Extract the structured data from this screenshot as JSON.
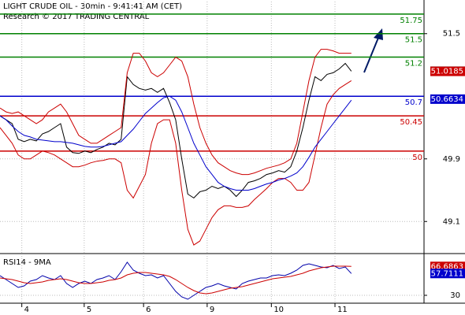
{
  "chart_data": [
    {
      "type": "line",
      "title": "LIGHT CRUDE OIL - 30min - 9:41:41 AM (CET)",
      "subtitle": "Research © 2017 TRADING CENTRAL",
      "xlim": [
        0,
        70
      ],
      "xticks": [
        {
          "value": 3.6,
          "label": "4"
        },
        {
          "value": 13.9,
          "label": "5"
        },
        {
          "value": 23.7,
          "label": "6"
        },
        {
          "value": 34.2,
          "label": "9"
        },
        {
          "value": 44.8,
          "label": "10"
        },
        {
          "value": 55.3,
          "label": "11"
        }
      ],
      "ylim": [
        48.69,
        51.91
      ],
      "yticks": [
        49.1,
        49.9,
        51.5
      ],
      "grid": true,
      "series": [
        {
          "color": "#000000",
          "values": [
            50.45,
            50.4,
            50.35,
            50.15,
            50.12,
            50.15,
            50.13,
            50.22,
            50.25,
            50.3,
            50.35,
            50.05,
            49.98,
            49.97,
            50.0,
            49.98,
            50.02,
            50.05,
            50.1,
            50.08,
            50.15,
            50.95,
            50.85,
            50.8,
            50.78,
            50.8,
            50.75,
            50.8,
            50.62,
            50.4,
            49.9,
            49.45,
            49.4,
            49.48,
            49.5,
            49.55,
            49.52,
            49.55,
            49.5,
            49.42,
            49.5,
            49.6,
            49.62,
            49.65,
            49.7,
            49.72,
            49.75,
            49.73,
            49.8,
            50.0,
            50.3,
            50.65,
            50.95,
            50.9,
            50.98,
            51.0,
            51.05,
            51.12,
            51.02
          ]
        },
        {
          "color": "#cc0000",
          "values": [
            50.55,
            50.5,
            50.48,
            50.5,
            50.45,
            50.4,
            50.35,
            50.4,
            50.5,
            50.55,
            50.6,
            50.5,
            50.35,
            50.2,
            50.15,
            50.1,
            50.1,
            50.15,
            50.2,
            50.25,
            50.3,
            51.0,
            51.25,
            51.25,
            51.15,
            51.0,
            50.95,
            51.0,
            51.1,
            51.2,
            51.15,
            50.95,
            50.6,
            50.3,
            50.1,
            49.95,
            49.85,
            49.8,
            49.75,
            49.72,
            49.7,
            49.7,
            49.72,
            49.75,
            49.78,
            49.8,
            49.82,
            49.85,
            49.9,
            50.1,
            50.5,
            50.9,
            51.2,
            51.3,
            51.3,
            51.28,
            51.25,
            51.25,
            51.25
          ]
        },
        {
          "color": "#cc0000",
          "values": [
            50.3,
            50.2,
            50.1,
            49.95,
            49.9,
            49.9,
            49.95,
            50.0,
            49.98,
            49.95,
            49.9,
            49.85,
            49.8,
            49.8,
            49.82,
            49.85,
            49.87,
            49.88,
            49.9,
            49.9,
            49.85,
            49.5,
            49.4,
            49.55,
            49.7,
            50.1,
            50.35,
            50.4,
            50.4,
            50.1,
            49.5,
            49.0,
            48.8,
            48.85,
            49.0,
            49.15,
            49.25,
            49.3,
            49.3,
            49.28,
            49.28,
            49.3,
            49.38,
            49.45,
            49.52,
            49.6,
            49.65,
            49.65,
            49.6,
            49.5,
            49.5,
            49.6,
            49.95,
            50.3,
            50.6,
            50.72,
            50.8,
            50.85,
            50.9
          ]
        },
        {
          "color": "#0000cc",
          "values": [
            50.45,
            50.4,
            50.32,
            50.25,
            50.2,
            50.18,
            50.15,
            50.14,
            50.13,
            50.12,
            50.12,
            50.11,
            50.1,
            50.08,
            50.06,
            50.05,
            50.05,
            50.06,
            50.08,
            50.1,
            50.12,
            50.2,
            50.28,
            50.38,
            50.48,
            50.55,
            50.62,
            50.68,
            50.7,
            50.65,
            50.5,
            50.3,
            50.1,
            49.95,
            49.8,
            49.7,
            49.6,
            49.55,
            49.52,
            49.5,
            49.5,
            49.5,
            49.52,
            49.55,
            49.58,
            49.6,
            49.63,
            49.65,
            49.68,
            49.72,
            49.8,
            49.92,
            50.05,
            50.15,
            50.25,
            50.35,
            50.45,
            50.55,
            50.65
          ]
        }
      ],
      "levels": [
        {
          "value": 51.75,
          "color": "#008000"
        },
        {
          "value": 51.5,
          "color": "#008000"
        },
        {
          "value": 51.2,
          "color": "#008000"
        },
        {
          "value": 50.7,
          "color": "#0000cc"
        },
        {
          "value": 50.45,
          "color": "#cc0000"
        },
        {
          "value": 50,
          "color": "#cc0000"
        }
      ],
      "markers": [
        {
          "value": 51.02,
          "color": "#000000"
        },
        {
          "value": 51.0185,
          "color": "#cc0000"
        },
        {
          "value": 50.6634,
          "color": "#0000cc"
        }
      ]
    },
    {
      "type": "line",
      "title": "RSI14 - 9MA",
      "xlim": [
        0,
        70
      ],
      "ylim": [
        20,
        80
      ],
      "yticks": [
        30
      ],
      "series": [
        {
          "color": "#0000aa",
          "values": [
            55,
            50,
            45,
            40,
            42,
            48,
            50,
            55,
            52,
            50,
            55,
            45,
            40,
            45,
            48,
            45,
            50,
            52,
            55,
            50,
            60,
            72,
            62,
            58,
            55,
            56,
            52,
            55,
            45,
            35,
            28,
            25,
            30,
            35,
            40,
            42,
            45,
            42,
            40,
            38,
            45,
            48,
            50,
            52,
            52,
            55,
            56,
            55,
            58,
            62,
            68,
            70,
            68,
            66,
            65,
            68,
            64,
            66,
            57.7111
          ]
        },
        {
          "color": "#cc0000",
          "values": [
            52,
            51,
            50,
            48,
            46,
            45,
            46,
            47,
            49,
            50,
            51,
            50,
            48,
            46,
            45,
            45,
            46,
            47,
            49,
            50,
            52,
            56,
            58,
            59,
            59,
            58,
            57,
            56,
            54,
            50,
            45,
            40,
            36,
            33,
            32,
            33,
            35,
            37,
            39,
            40,
            41,
            43,
            45,
            47,
            49,
            51,
            52,
            53,
            54,
            56,
            58,
            61,
            63,
            65,
            66,
            67,
            67,
            67,
            66.6863
          ]
        }
      ],
      "markers": [
        {
          "value": 66.6863,
          "color": "#cc0000"
        },
        {
          "value": 57.7111,
          "color": "#0000cc"
        }
      ]
    }
  ]
}
